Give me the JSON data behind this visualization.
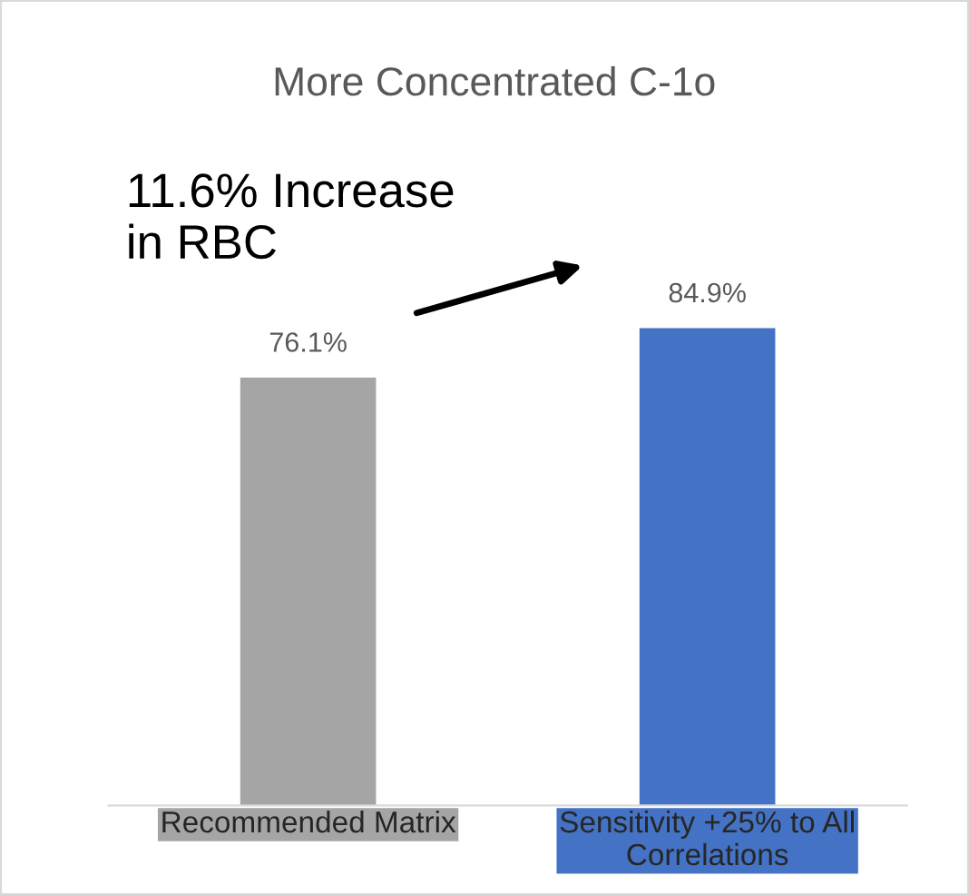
{
  "chart_data": {
    "type": "bar",
    "title": "More Concentrated C-1o",
    "categories": [
      "Recommended Matrix",
      "Sensitivity +25% to All Correlations"
    ],
    "values": [
      76.1,
      84.9
    ],
    "colors": [
      "#a5a5a5",
      "#4472c4"
    ],
    "value_labels": [
      "76.1%",
      "84.9%"
    ],
    "tick_labels": "x",
    "grid": false,
    "legend": false,
    "annotations": [
      "11.6% Increase in RBC"
    ]
  }
}
